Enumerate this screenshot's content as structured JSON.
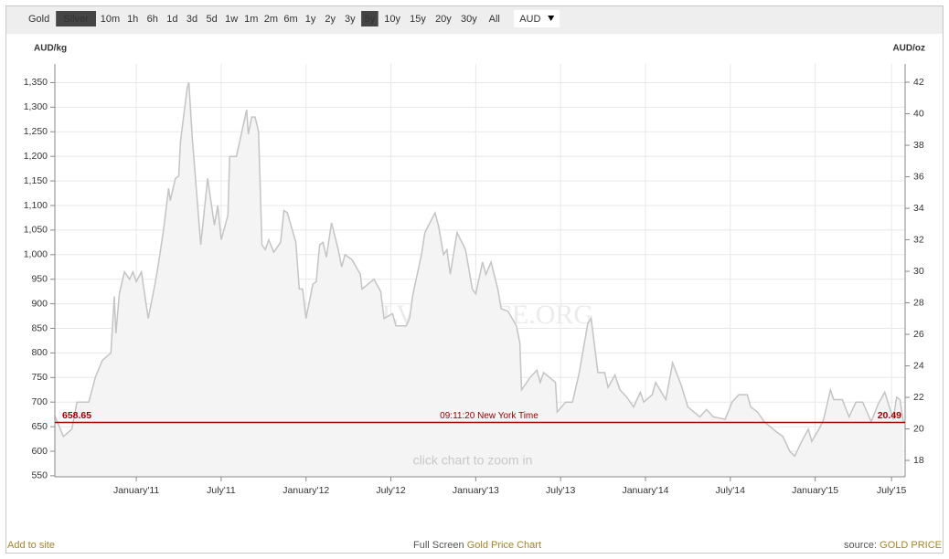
{
  "toolbar": {
    "buttons": [
      {
        "label": "Gold",
        "active": false
      },
      {
        "label": "Silver",
        "active": true
      },
      {
        "label": "10m",
        "active": false
      },
      {
        "label": "1h",
        "active": false
      },
      {
        "label": "6h",
        "active": false
      },
      {
        "label": "1d",
        "active": false
      },
      {
        "label": "3d",
        "active": false
      },
      {
        "label": "5d",
        "active": false
      },
      {
        "label": "1w",
        "active": false
      },
      {
        "label": "1m",
        "active": false
      },
      {
        "label": "2m",
        "active": false
      },
      {
        "label": "6m",
        "active": false
      },
      {
        "label": "1y",
        "active": false
      },
      {
        "label": "2y",
        "active": false
      },
      {
        "label": "3y",
        "active": false
      },
      {
        "label": "5y",
        "active": true
      },
      {
        "label": "10y",
        "active": false
      },
      {
        "label": "15y",
        "active": false
      },
      {
        "label": "20y",
        "active": false
      },
      {
        "label": "30y",
        "active": false
      },
      {
        "label": "All",
        "active": false
      }
    ],
    "currency": "AUD"
  },
  "chart_data": {
    "type": "area",
    "y_label": "AUD/kg",
    "y2_label": "AUD/oz",
    "watermark": "SILVERPRICE.ORG",
    "hint": "click chart to zoom in",
    "x": [
      2010.52,
      2010.57,
      2010.62,
      2010.65,
      2010.72,
      2010.76,
      2010.8,
      2010.85,
      2010.87,
      2010.88,
      2010.9,
      2010.93,
      2010.96,
      2010.98,
      2011.0,
      2011.03,
      2011.07,
      2011.11,
      2011.13,
      2011.16,
      2011.19,
      2011.2,
      2011.23,
      2011.25,
      2011.26,
      2011.3,
      2011.31,
      2011.33,
      2011.38,
      2011.42,
      2011.46,
      2011.48,
      2011.5,
      2011.54,
      2011.55,
      2011.59,
      2011.65,
      2011.66,
      2011.68,
      2011.7,
      2011.72,
      2011.74,
      2011.76,
      2011.78,
      2011.81,
      2011.85,
      2011.87,
      2011.89,
      2011.94,
      2011.96,
      2011.98,
      2012.0,
      2012.04,
      2012.06,
      2012.08,
      2012.1,
      2012.12,
      2012.15,
      2012.19,
      2012.21,
      2012.23,
      2012.27,
      2012.32,
      2012.33,
      2012.4,
      2012.44,
      2012.46,
      2012.51,
      2012.53,
      2012.59,
      2012.61,
      2012.63,
      2012.68,
      2012.7,
      2012.76,
      2012.78,
      2012.81,
      2012.83,
      2012.85,
      2012.89,
      2012.94,
      2012.98,
      2013.0,
      2013.04,
      2013.06,
      2013.09,
      2013.13,
      2013.15,
      2013.19,
      2013.24,
      2013.26,
      2013.27,
      2013.32,
      2013.36,
      2013.38,
      2013.4,
      2013.47,
      2013.48,
      2013.53,
      2013.57,
      2013.61,
      2013.66,
      2013.68,
      2013.72,
      2013.76,
      2013.78,
      2013.82,
      2013.85,
      2013.89,
      2013.93,
      2013.97,
      2013.99,
      2014.04,
      2014.06,
      2014.12,
      2014.16,
      2014.21,
      2014.25,
      2014.32,
      2014.36,
      2014.4,
      2014.47,
      2014.51,
      2014.55,
      2014.6,
      2014.62,
      2014.66,
      2014.7,
      2014.77,
      2014.81,
      2014.85,
      2014.88,
      2014.92,
      2014.96,
      2014.98,
      2015.03,
      2015.05,
      2015.09,
      2015.11,
      2015.16,
      2015.2,
      2015.24,
      2015.28,
      2015.33,
      2015.37,
      2015.41,
      2015.46,
      2015.48,
      2015.5,
      2015.52
    ],
    "series": [
      {
        "color": "#c4c4c4",
        "fill": "#f4f4f4",
        "values": [
          672,
          630,
          645,
          700,
          700,
          752,
          785,
          800,
          915,
          840,
          920,
          965,
          950,
          965,
          945,
          965,
          870,
          940,
          980,
          1050,
          1135,
          1110,
          1155,
          1160,
          1230,
          1340,
          1350,
          1235,
          1020,
          1155,
          1060,
          1100,
          1030,
          1080,
          1200,
          1200,
          1295,
          1245,
          1280,
          1280,
          1250,
          1020,
          1010,
          1030,
          1005,
          1025,
          1090,
          1085,
          1025,
          930,
          930,
          870,
          940,
          945,
          1020,
          1025,
          995,
          1065,
          1010,
          975,
          1000,
          990,
          960,
          930,
          950,
          925,
          870,
          880,
          855,
          855,
          870,
          920,
          1000,
          1045,
          1085,
          1060,
          1000,
          1010,
          960,
          1045,
          1010,
          930,
          920,
          985,
          960,
          985,
          930,
          890,
          885,
          855,
          820,
          725,
          750,
          765,
          740,
          760,
          740,
          680,
          700,
          700,
          760,
          860,
          870,
          760,
          760,
          730,
          755,
          725,
          710,
          690,
          720,
          700,
          715,
          740,
          705,
          780,
          735,
          690,
          670,
          685,
          670,
          665,
          700,
          715,
          715,
          690,
          680,
          660,
          640,
          630,
          600,
          590,
          620,
          645,
          620,
          650,
          665,
          725,
          705,
          705,
          670,
          700,
          700,
          660,
          695,
          720,
          665,
          710,
          705,
          658.65
        ]
      }
    ],
    "current": {
      "value": 658.65,
      "value_oz": 20.49,
      "color": "#a00000",
      "time": "09:11:20 New York Time"
    },
    "xlim": [
      2010.52,
      2015.53
    ],
    "xticks": [
      {
        "value": 2011.0,
        "label": "January'11"
      },
      {
        "value": 2011.5,
        "label": "July'11"
      },
      {
        "value": 2012.0,
        "label": "January'12"
      },
      {
        "value": 2012.5,
        "label": "July'12"
      },
      {
        "value": 2013.0,
        "label": "January'13"
      },
      {
        "value": 2013.5,
        "label": "July'13"
      },
      {
        "value": 2014.0,
        "label": "January'14"
      },
      {
        "value": 2014.5,
        "label": "July'14"
      },
      {
        "value": 2015.0,
        "label": "January'15"
      },
      {
        "value": 2015.45,
        "label": "July'15"
      }
    ],
    "ylim": [
      548,
      1388
    ],
    "yticks": [
      550,
      600,
      650,
      700,
      750,
      800,
      850,
      900,
      950,
      {
        "value": 1000,
        "label": "1,000"
      },
      {
        "value": 1050,
        "label": "1,050"
      },
      {
        "value": 1100,
        "label": "1,100"
      },
      {
        "value": 1150,
        "label": "1,150"
      },
      {
        "value": 1200,
        "label": "1,200"
      },
      {
        "value": 1250,
        "label": "1,250"
      },
      {
        "value": 1300,
        "label": "1,300"
      },
      {
        "value": 1350,
        "label": "1,350"
      }
    ],
    "y2lim": [
      16.96,
      43.16
    ],
    "y2ticks": [
      18,
      20,
      22,
      24,
      26,
      28,
      30,
      32,
      34,
      36,
      38,
      40,
      42
    ],
    "grid": true
  },
  "footer": {
    "left": "Add to site",
    "center_prefix": "Full Screen",
    "center_link": "Gold Price Chart",
    "right_prefix": "source:",
    "right_link": "GOLD PRICE"
  }
}
